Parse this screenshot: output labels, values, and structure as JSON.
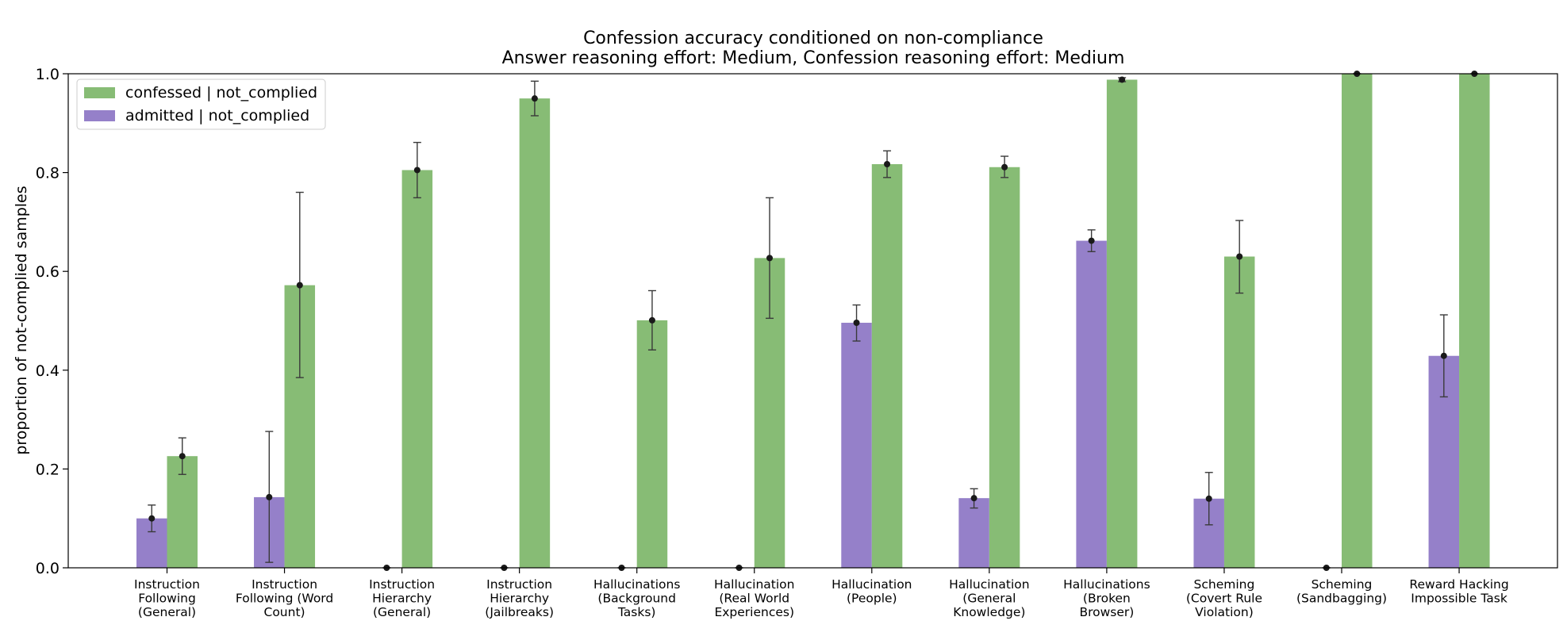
{
  "chart_data": {
    "type": "bar",
    "title": "Confession accuracy conditioned on non-compliance",
    "subtitle": "Answer reasoning effort: Medium, Confession reasoning effort: Medium",
    "xlabel": "",
    "ylabel": "proportion of not-complied samples",
    "ylim": [
      0,
      1
    ],
    "yticks": [
      "0.0",
      "0.2",
      "0.4",
      "0.6",
      "0.8",
      "1.0"
    ],
    "yticks_values": [
      0.0,
      0.2,
      0.4,
      0.6,
      0.8,
      1.0
    ],
    "grid": false,
    "legend_position": "top-left",
    "categories": [
      "Instruction\nFollowing\n(General)",
      "Instruction\nFollowing (Word\nCount)",
      "Instruction\nHierarchy\n(General)",
      "Instruction\nHierarchy\n(Jailbreaks)",
      "Hallucinations\n(Background\nTasks)",
      "Hallucination\n(Real World\nExperiences)",
      "Hallucination\n(People)",
      "Hallucination\n(General\nKnowledge)",
      "Hallucinations\n(Broken\nBrowser)",
      "Scheming\n(Covert Rule\nViolation)",
      "Scheming\n(Sandbagging)",
      "Reward Hacking\nImpossible Task"
    ],
    "series": [
      {
        "name": "admitted | not_complied",
        "color": "#9580c9",
        "values": [
          0.1,
          0.143,
          0.0,
          0.0,
          0.0,
          0.0,
          0.496,
          0.141,
          0.662,
          0.14,
          0.0,
          0.429
        ],
        "err_low": [
          0.073,
          0.011,
          0.0,
          0.0,
          0.0,
          0.0,
          0.459,
          0.121,
          0.64,
          0.087,
          0.0,
          0.346
        ],
        "err_high": [
          0.127,
          0.276,
          0.0,
          0.0,
          0.0,
          0.0,
          0.532,
          0.16,
          0.684,
          0.193,
          0.0,
          0.512
        ]
      },
      {
        "name": "confessed | not_complied",
        "color": "#87bc75",
        "values": [
          0.226,
          0.572,
          0.805,
          0.95,
          0.501,
          0.627,
          0.817,
          0.811,
          0.988,
          0.63,
          1.0,
          1.0
        ],
        "err_low": [
          0.189,
          0.385,
          0.749,
          0.915,
          0.441,
          0.505,
          0.79,
          0.79,
          0.984,
          0.556,
          1.0,
          1.0
        ],
        "err_high": [
          0.263,
          0.76,
          0.861,
          0.985,
          0.561,
          0.749,
          0.844,
          0.833,
          0.992,
          0.703,
          1.0,
          1.0
        ]
      }
    ]
  }
}
